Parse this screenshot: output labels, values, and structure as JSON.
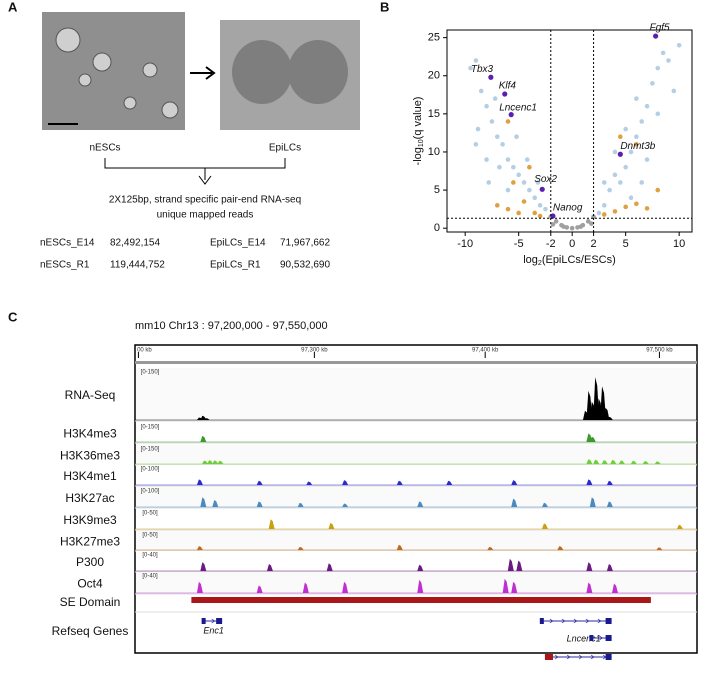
{
  "panel_a": {
    "letter": "A",
    "left_label": "nESCs",
    "right_label": "EpiLCs",
    "description": [
      "2X125bp, strand specific pair-end RNA-seq",
      "unique mapped reads"
    ],
    "reads": [
      [
        "nESCs_E14",
        "82,492,154",
        "EpiLCs_E14",
        "71,967,662"
      ],
      [
        "nESCs_R1",
        "119,444,752",
        "EpiLCs_R1",
        "90,532,690"
      ]
    ]
  },
  "chart_data": {
    "type": "scatter",
    "letter": "B",
    "xlabel_parts": [
      "log",
      "2",
      "(EpiLCs/ESCs)"
    ],
    "ylabel_parts": [
      "-log",
      "10",
      "(q value)"
    ],
    "xlim": [
      -11.7,
      11.2
    ],
    "ylim": [
      -0.5,
      26
    ],
    "xticks": [
      -10,
      -5,
      -2,
      0,
      2,
      5,
      10
    ],
    "yticks": [
      0,
      5,
      10,
      15,
      20,
      25
    ],
    "thresholds": {
      "x": [
        -2,
        2
      ],
      "y": 1.3
    },
    "series": [
      {
        "color": "#b3cfe6",
        "x": [
          -9,
          -8.5,
          -8,
          -7.5,
          -7,
          -6.5,
          -6,
          -5.5,
          -5,
          -4.5,
          -4,
          -3.5,
          -3,
          -9.5,
          -8.8,
          -7.2,
          -6.8,
          -5.2,
          -4.2,
          -3.2,
          -6,
          -8,
          -9,
          -2.5,
          -7.8,
          3,
          3.5,
          4,
          4.5,
          5,
          5.5,
          6,
          6.5,
          7,
          7.5,
          8,
          8.5,
          9,
          10,
          5,
          6,
          4,
          3,
          7,
          8,
          9.5,
          2.5,
          6.5,
          5.5
        ],
        "values": [
          22,
          18,
          16,
          14,
          12,
          11,
          9,
          8,
          7,
          6,
          5,
          4,
          3,
          21,
          13,
          17,
          8,
          12,
          9,
          6,
          5,
          9,
          11,
          2.5,
          6,
          3,
          5,
          7,
          6,
          8,
          10,
          12,
          14,
          16,
          19,
          21,
          23,
          22,
          24,
          13,
          17,
          10,
          6,
          9,
          15,
          18,
          2,
          6,
          4
        ]
      },
      {
        "color": "#e0a040",
        "x": [
          -7,
          -6,
          -5,
          -4.5,
          -3.5,
          -3,
          -5.5,
          -6,
          -4,
          3,
          4,
          5,
          6,
          7,
          4.5,
          6,
          8
        ],
        "values": [
          3,
          2.5,
          2,
          3.5,
          2,
          1.6,
          6,
          14,
          8,
          1.8,
          2.2,
          2.8,
          3.2,
          2.6,
          12,
          11,
          5
        ]
      },
      {
        "color": "#a0a0a0",
        "x": [
          -2,
          -1.5,
          -1,
          -0.5,
          0,
          0.5,
          1,
          1.5,
          2,
          -1.8,
          1.8,
          -0.8,
          0.8
        ],
        "values": [
          1.5,
          0.9,
          0.4,
          0.1,
          0,
          0.1,
          0.4,
          0.9,
          1.5,
          0.5,
          0.6,
          0.2,
          0.2
        ]
      },
      {
        "color": "#5a1fb0",
        "labels": [
          "Tbx3",
          "Klf4",
          "Lncenc1",
          "Sox2",
          "Nanog",
          "Fgf5",
          "Dnmt3b"
        ],
        "x": [
          -7.6,
          -6.3,
          -5.7,
          -2.8,
          -1.8,
          7.8,
          4.5
        ],
        "values": [
          19.8,
          17.6,
          14.9,
          5.1,
          1.6,
          25.2,
          9.7
        ]
      }
    ]
  },
  "panel_c": {
    "letter": "C",
    "title": "mm10 Chr13 : 97,200,000 - 97,550,000",
    "xlim": [
      97195,
      97524
    ],
    "ruler": [
      {
        "value": 97197,
        "label": "00 kb"
      },
      {
        "value": 97300,
        "label": "97,300 kb"
      },
      {
        "value": 97400,
        "label": "97,400 kb"
      },
      {
        "value": 97502,
        "label": "97,500 kb"
      }
    ],
    "tracks": [
      {
        "name": "RNA-Seq",
        "range": {
          "value": 150,
          "label": "[0-150]"
        },
        "color": "#000000",
        "peaks": [
          97233,
          97235,
          97237,
          97459,
          97461,
          97463,
          97465,
          97467,
          97469,
          97471,
          97473
        ],
        "heights": [
          8,
          14,
          6,
          30,
          95,
          60,
          140,
          70,
          110,
          40,
          10
        ]
      },
      {
        "name": "H3K4me3",
        "range": {
          "value": 150,
          "label": "[0-150]"
        },
        "color": "#3a9a2a",
        "peaks": [
          97235,
          97461,
          97463
        ],
        "heights": [
          70,
          100,
          60
        ]
      },
      {
        "name": "H3K36me3",
        "range": {
          "value": 150,
          "label": "[0-150]"
        },
        "color": "#6fcf3a",
        "peaks": [
          97236,
          97239,
          97242,
          97245,
          97461,
          97465,
          97470,
          97475,
          97480,
          97487,
          97494,
          97501
        ],
        "heights": [
          40,
          45,
          42,
          38,
          55,
          50,
          45,
          48,
          42,
          38,
          35,
          30
        ]
      },
      {
        "name": "H3K4me1",
        "range": {
          "value": 100,
          "label": "[0-100]"
        },
        "color": "#2a2ad0",
        "peaks": [
          97233,
          97268,
          97297,
          97318,
          97350,
          97379,
          97417,
          97461,
          97473
        ],
        "heights": [
          40,
          30,
          25,
          35,
          30,
          30,
          35,
          40,
          30
        ]
      },
      {
        "name": "H3K27ac",
        "range": {
          "value": 100,
          "label": "[0-100]"
        },
        "color": "#4a8ac0",
        "peaks": [
          97235,
          97242,
          97268,
          97292,
          97318,
          97362,
          97417,
          97435,
          97463,
          97473
        ],
        "heights": [
          70,
          50,
          40,
          30,
          25,
          40,
          60,
          30,
          70,
          40
        ]
      },
      {
        "name": "H3K9me3",
        "range": {
          "value": 50,
          "label": "[0-50]"
        },
        "color": "#c8a010",
        "peaks": [
          97275,
          97310,
          97435,
          97514
        ],
        "heights": [
          35,
          22,
          20,
          15
        ]
      },
      {
        "name": "H3K27me3",
        "range": {
          "value": 50,
          "label": "[0-50]"
        },
        "color": "#c06a20",
        "peaks": [
          97233,
          97292,
          97350,
          97403,
          97444,
          97502
        ],
        "heights": [
          15,
          12,
          20,
          12,
          15,
          10
        ]
      },
      {
        "name": "P300",
        "range": {
          "value": 40,
          "label": "[0-40]"
        },
        "color": "#6a1a80",
        "peaks": [
          97235,
          97274,
          97309,
          97362,
          97415,
          97420,
          97461,
          97473
        ],
        "heights": [
          25,
          20,
          22,
          18,
          35,
          30,
          25,
          20
        ]
      },
      {
        "name": "Oct4",
        "range": {
          "value": 40,
          "label": "[0-40]"
        },
        "color": "#c030d0",
        "peaks": [
          97233,
          97268,
          97295,
          97318,
          97362,
          97412,
          97417,
          97461,
          97476
        ],
        "heights": [
          30,
          20,
          28,
          30,
          35,
          38,
          30,
          28,
          25
        ]
      }
    ],
    "se_domain": {
      "name": "SE Domain",
      "start": 97228,
      "end": 97497
    },
    "refseq": {
      "name": "Refseq Genes",
      "genes": [
        {
          "name": "Enc1",
          "start": 97234,
          "end": 97246
        },
        {
          "name": "Lncenc1",
          "start": 97432,
          "end": 97474
        }
      ],
      "isoforms": [
        {
          "start": 97461,
          "end": 97474
        },
        {
          "start": 97435,
          "end": 97474
        }
      ]
    }
  }
}
